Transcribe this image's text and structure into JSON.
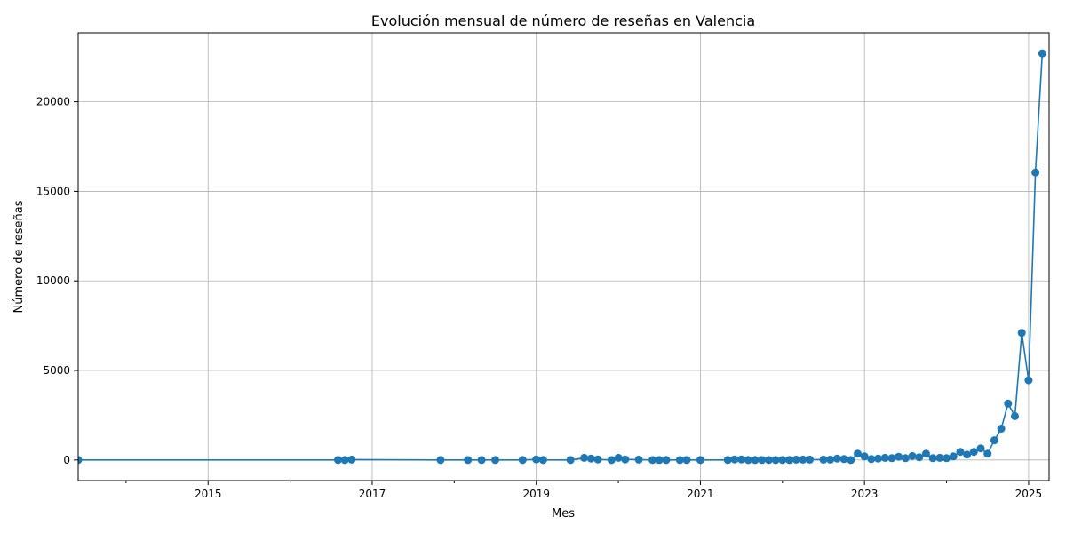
{
  "chart_data": {
    "type": "line",
    "title": "Evolución mensual de número de reseñas en Valencia",
    "xlabel": "Mes",
    "ylabel": "Número de reseñas",
    "grid": true,
    "xlim": [
      "2013-06",
      "2025-04"
    ],
    "ylim": [
      -1150,
      23850
    ],
    "x_ticks": [
      "2015",
      "2017",
      "2019",
      "2021",
      "2023",
      "2025"
    ],
    "y_ticks": [
      0,
      5000,
      10000,
      15000,
      20000
    ],
    "color": "#1f77b4",
    "series": [
      {
        "x": [
          "2013-06",
          "2016-08",
          "2016-09",
          "2016-10",
          "2017-11",
          "2018-03",
          "2018-05",
          "2018-07",
          "2018-11",
          "2019-01",
          "2019-02",
          "2019-06",
          "2019-08",
          "2019-09",
          "2019-10",
          "2019-12",
          "2020-01",
          "2020-02",
          "2020-04",
          "2020-06",
          "2020-07",
          "2020-08",
          "2020-10",
          "2020-11",
          "2021-01",
          "2021-05",
          "2021-06",
          "2021-07",
          "2021-08",
          "2021-09",
          "2021-10",
          "2021-11",
          "2021-12",
          "2022-01",
          "2022-02",
          "2022-03",
          "2022-04",
          "2022-05",
          "2022-07",
          "2022-08",
          "2022-09",
          "2022-10",
          "2022-11",
          "2022-12",
          "2023-01",
          "2023-02",
          "2023-03",
          "2023-04",
          "2023-05",
          "2023-06",
          "2023-07",
          "2023-08",
          "2023-09",
          "2023-10",
          "2023-11",
          "2023-12",
          "2024-01",
          "2024-02",
          "2024-03",
          "2024-04",
          "2024-05",
          "2024-06",
          "2024-07",
          "2024-08",
          "2024-09",
          "2024-10",
          "2024-11",
          "2024-12",
          "2025-01",
          "2025-02",
          "2025-03"
        ],
        "values": [
          0,
          0,
          0,
          20,
          0,
          0,
          0,
          0,
          0,
          30,
          0,
          0,
          120,
          80,
          30,
          0,
          120,
          30,
          20,
          0,
          0,
          0,
          0,
          0,
          0,
          0,
          30,
          30,
          0,
          0,
          0,
          0,
          0,
          0,
          0,
          20,
          20,
          20,
          20,
          20,
          80,
          50,
          0,
          350,
          200,
          50,
          80,
          120,
          100,
          180,
          100,
          220,
          150,
          350,
          100,
          120,
          100,
          200,
          450,
          300,
          450,
          650,
          350,
          1100,
          1750,
          3150,
          2450,
          7100,
          4450,
          16050,
          22700
        ]
      }
    ]
  }
}
